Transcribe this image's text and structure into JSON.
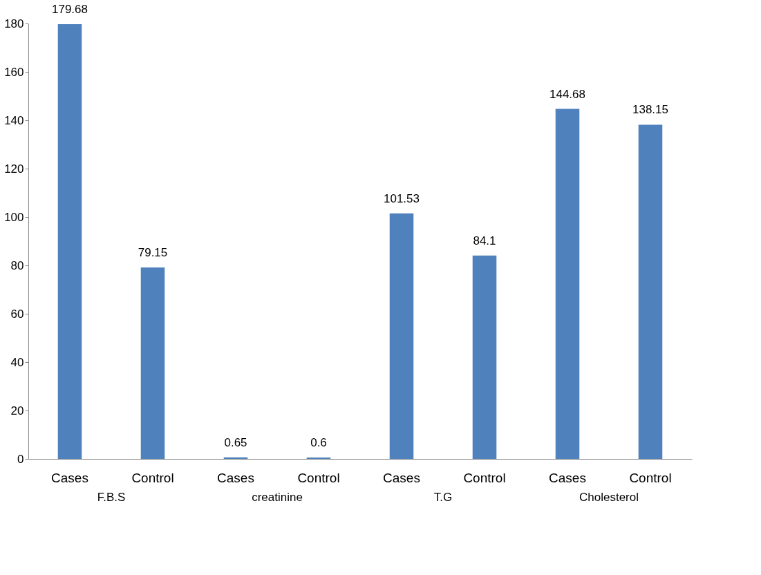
{
  "chart_data": {
    "type": "bar",
    "categories": [
      "Cases",
      "Control",
      "Cases",
      "Control",
      "Cases",
      "Control",
      "Cases",
      "Control"
    ],
    "values": [
      179.68,
      79.15,
      0.65,
      0.6,
      101.53,
      84.1,
      144.68,
      138.15
    ],
    "color": "#4f81bd",
    "ylim": [
      0,
      180
    ],
    "yticks": [
      0,
      20,
      40,
      60,
      80,
      100,
      120,
      140,
      160,
      180
    ],
    "grid": false,
    "data_labels": true,
    "annotations": [
      "F.B.S",
      "creatinine",
      "T.G",
      "Cholesterol"
    ]
  }
}
